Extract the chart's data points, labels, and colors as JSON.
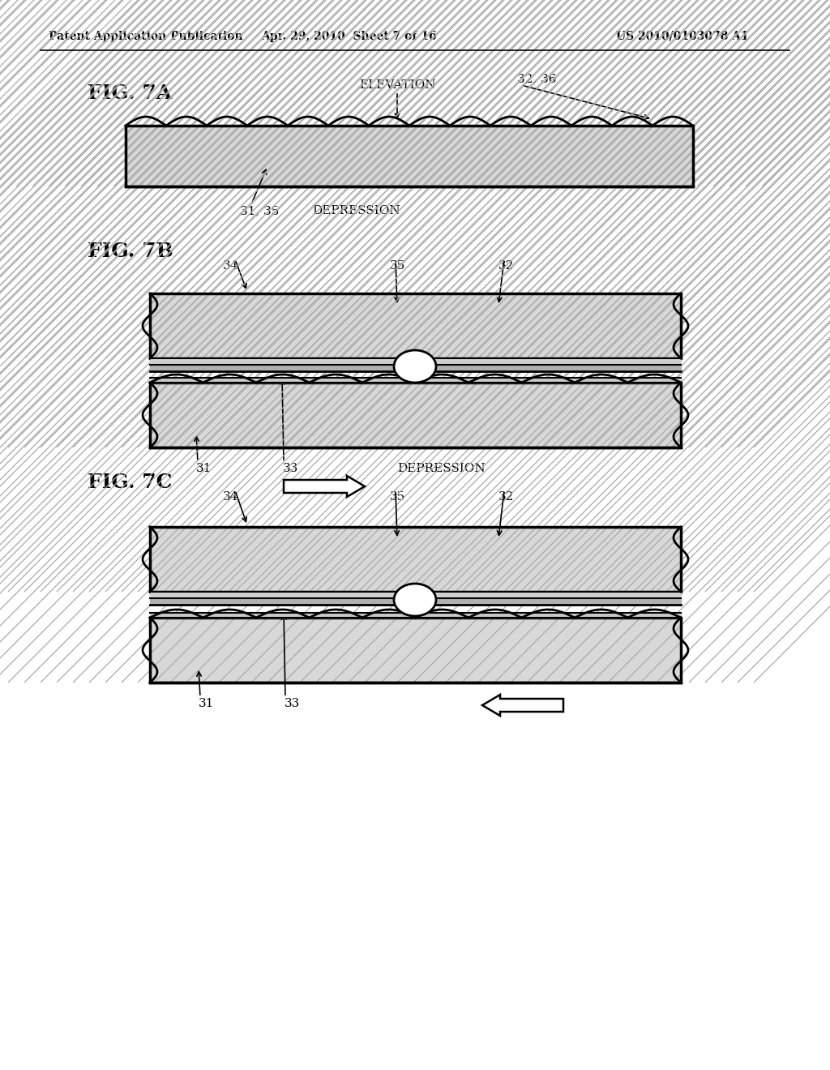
{
  "bg_color": "#ffffff",
  "header_left": "Patent Application Publication",
  "header_center": "Apr. 29, 2010  Sheet 7 of 16",
  "header_right": "US 2010/0103078 A1",
  "fig7a_label": "FIG. 7A",
  "fig7b_label": "FIG. 7B",
  "fig7c_label": "FIG. 7C",
  "text_elevation": "ELEVATION",
  "text_depression": "DEPRESSION",
  "label_32_36": "32, 36",
  "label_31_35": "31, 35",
  "label_34": "34",
  "label_35": "35",
  "label_32": "32",
  "label_31": "31",
  "label_33": "33"
}
